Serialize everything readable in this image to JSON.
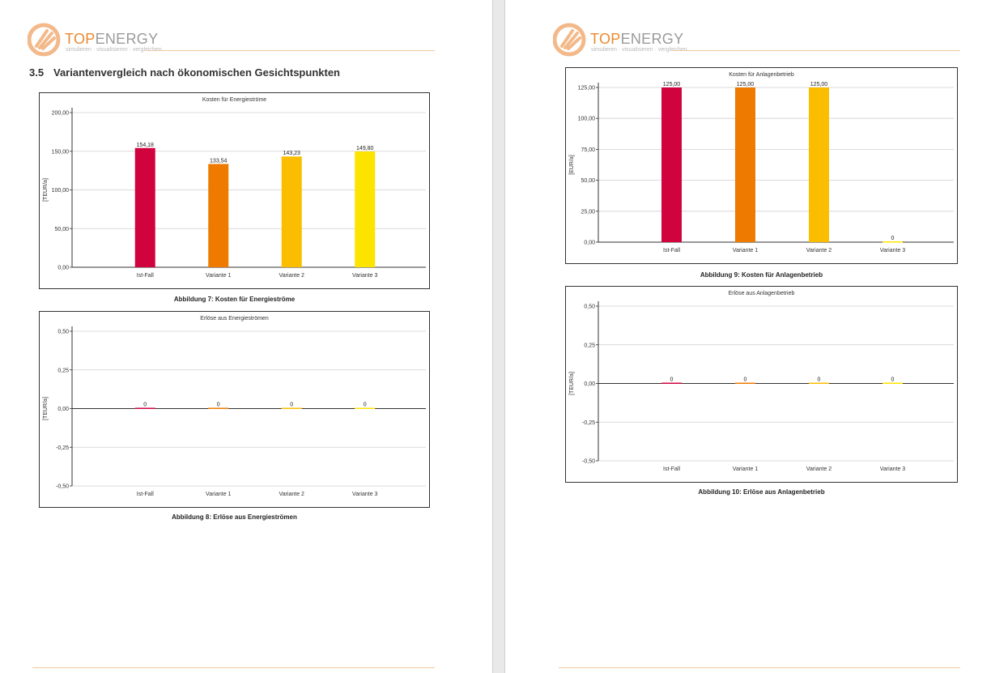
{
  "logo": {
    "brand_top": "TOP",
    "brand_energy": "ENERGY",
    "tagline": "simulieren · visualisieren · vergleichen"
  },
  "section": {
    "number": "3.5",
    "title": "Variantenvergleich nach ökonomischen Gesichtspunkten"
  },
  "colors": {
    "accent": "#e88a2e",
    "header_line": "#f0c8a0"
  },
  "charts": {
    "c7": {
      "caption": "Abbildung 7: Kosten für Energieströme"
    },
    "c8": {
      "caption": "Abbildung 8: Erlöse aus Energieströmen"
    },
    "c9": {
      "caption": "Abbildung 9: Kosten für Anlagenbetrieb"
    },
    "c10": {
      "caption": "Abbildung 10: Erlöse aus Anlagenbetrieb"
    }
  },
  "chart_data": [
    {
      "id": "c7",
      "type": "bar",
      "title": "Kosten für Energieströme",
      "ylabel": "[TEUR/a]",
      "xlabel": "",
      "categories": [
        "Ist-Fall",
        "Variante 1",
        "Variante 2",
        "Variante 3"
      ],
      "values": [
        154.18,
        133.54,
        143.23,
        149.8
      ],
      "value_labels": [
        "154,18",
        "133,54",
        "143,23",
        "149,80"
      ],
      "bar_colors": [
        "#d0033f",
        "#ee7a00",
        "#fbbd00",
        "#fde400"
      ],
      "ylim": [
        0,
        200
      ],
      "yticks": [
        0,
        50,
        100,
        150,
        200
      ],
      "ytick_labels": [
        "0,00",
        "50,00",
        "100,00",
        "150,00",
        "200,00"
      ],
      "grid": true,
      "legend": "none"
    },
    {
      "id": "c8",
      "type": "bar",
      "title": "Erlöse aus Energieströmen",
      "ylabel": "[TEUR/a]",
      "xlabel": "",
      "categories": [
        "Ist-Fall",
        "Variante 1",
        "Variante 2",
        "Variante 3"
      ],
      "values": [
        0,
        0,
        0,
        0
      ],
      "value_labels": [
        "0",
        "0",
        "0",
        "0"
      ],
      "bar_colors": [
        "#d0033f",
        "#ee7a00",
        "#fbbd00",
        "#fde400"
      ],
      "ylim": [
        -0.5,
        0.5
      ],
      "yticks": [
        -0.5,
        -0.25,
        0,
        0.25,
        0.5
      ],
      "ytick_labels": [
        "-0,50",
        "-0,25",
        "0,00",
        "0,25",
        "0,50"
      ],
      "grid": true,
      "legend": "none"
    },
    {
      "id": "c9",
      "type": "bar",
      "title": "Kosten für Anlagenbetrieb",
      "ylabel": "[EUR/a]",
      "xlabel": "",
      "categories": [
        "Ist-Fall",
        "Variante 1",
        "Variante 2",
        "Variante 3"
      ],
      "values": [
        125,
        125,
        125,
        0
      ],
      "value_labels": [
        "125,00",
        "125,00",
        "125,00",
        "0"
      ],
      "bar_colors": [
        "#d0033f",
        "#ee7a00",
        "#fbbd00",
        "#fde400"
      ],
      "ylim": [
        0,
        125
      ],
      "yticks": [
        0,
        25,
        50,
        75,
        100,
        125
      ],
      "ytick_labels": [
        "0,00",
        "25,00",
        "50,00",
        "75,00",
        "100,00",
        "125,00"
      ],
      "grid": true,
      "legend": "none"
    },
    {
      "id": "c10",
      "type": "bar",
      "title": "Erlöse aus Anlagenbetrieb",
      "ylabel": "[TEUR/a]",
      "xlabel": "",
      "categories": [
        "Ist-Fall",
        "Variante 1",
        "Variante 2",
        "Variante 3"
      ],
      "values": [
        0,
        0,
        0,
        0
      ],
      "value_labels": [
        "0",
        "0",
        "0",
        "0"
      ],
      "bar_colors": [
        "#d0033f",
        "#ee7a00",
        "#fbbd00",
        "#fde400"
      ],
      "ylim": [
        -0.5,
        0.5
      ],
      "yticks": [
        -0.5,
        -0.25,
        0,
        0.25,
        0.5
      ],
      "ytick_labels": [
        "-0,50",
        "-0,25",
        "0,00",
        "0,25",
        "0,50"
      ],
      "grid": true,
      "legend": "none"
    }
  ]
}
